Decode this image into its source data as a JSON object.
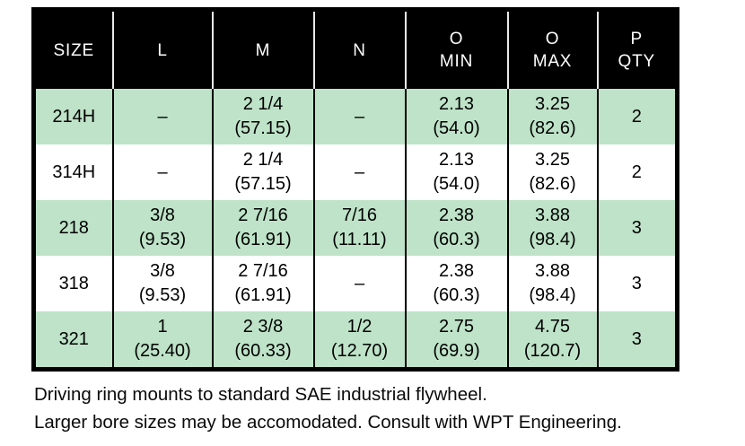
{
  "table": {
    "columns": [
      {
        "l1": "SIZE"
      },
      {
        "l1": "L"
      },
      {
        "l1": "M"
      },
      {
        "l1": "N"
      },
      {
        "l1": "O",
        "l2": "MIN"
      },
      {
        "l1": "O",
        "l2": "MAX"
      },
      {
        "l1": "P",
        "l2": "QTY"
      }
    ],
    "rows": [
      {
        "cells": [
          {
            "l1": "214H"
          },
          {
            "l1": "–"
          },
          {
            "l1": "2 1/4",
            "l2": "(57.15)"
          },
          {
            "l1": "–"
          },
          {
            "l1": "2.13",
            "l2": "(54.0)"
          },
          {
            "l1": "3.25",
            "l2": "(82.6)"
          },
          {
            "l1": "2"
          }
        ]
      },
      {
        "cells": [
          {
            "l1": "314H"
          },
          {
            "l1": "–"
          },
          {
            "l1": "2 1/4",
            "l2": "(57.15)"
          },
          {
            "l1": "–"
          },
          {
            "l1": "2.13",
            "l2": "(54.0)"
          },
          {
            "l1": "3.25",
            "l2": "(82.6)"
          },
          {
            "l1": "2"
          }
        ]
      },
      {
        "cells": [
          {
            "l1": "218"
          },
          {
            "l1": "3/8",
            "l2": "(9.53)"
          },
          {
            "l1": "2 7/16",
            "l2": "(61.91)"
          },
          {
            "l1": "7/16",
            "l2": "(11.11)"
          },
          {
            "l1": "2.38",
            "l2": "(60.3)"
          },
          {
            "l1": "3.88",
            "l2": "(98.4)"
          },
          {
            "l1": "3"
          }
        ]
      },
      {
        "cells": [
          {
            "l1": "318"
          },
          {
            "l1": "3/8",
            "l2": "(9.53)"
          },
          {
            "l1": "2 7/16",
            "l2": "(61.91)"
          },
          {
            "l1": "–"
          },
          {
            "l1": "2.38",
            "l2": "(60.3)"
          },
          {
            "l1": "3.88",
            "l2": "(98.4)"
          },
          {
            "l1": "3"
          }
        ]
      },
      {
        "cells": [
          {
            "l1": "321"
          },
          {
            "l1": "1",
            "l2": "(25.40)"
          },
          {
            "l1": "2 3/8",
            "l2": "(60.33)"
          },
          {
            "l1": "1/2",
            "l2": "(12.70)"
          },
          {
            "l1": "2.75",
            "l2": "(69.9)"
          },
          {
            "l1": "4.75",
            "l2": "(120.7)"
          },
          {
            "l1": "3"
          }
        ]
      }
    ]
  },
  "notes": {
    "line1": "Driving ring mounts to standard SAE industrial flywheel.",
    "line2": "Larger bore sizes may be accomodated. Consult with WPT Engineering."
  },
  "colors": {
    "header_bg": "#000000",
    "header_text": "#ffffff",
    "row_green": "#bee3c8",
    "row_white": "#ffffff",
    "border": "#000000"
  }
}
